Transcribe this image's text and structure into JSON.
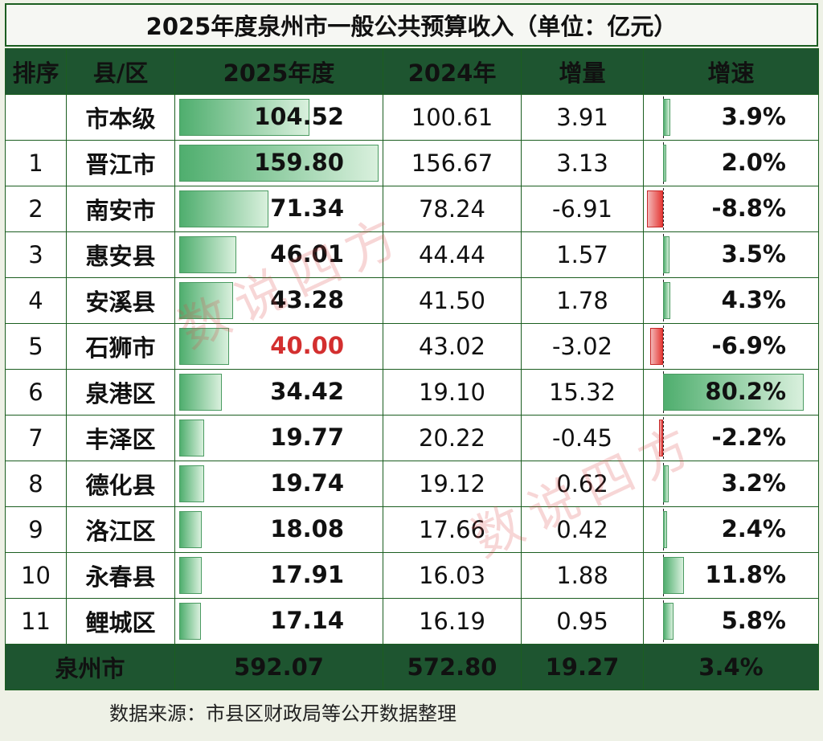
{
  "title": "2025年度泉州市一般公共预算收入（单位：亿元）",
  "headers": {
    "rank": "排序",
    "name": "县/区",
    "y2025": "2025年度",
    "y2024": "2024年",
    "delta": "增量",
    "rate": "增速"
  },
  "rows": [
    {
      "rank": "",
      "name": "市本级",
      "v2025": "104.52",
      "v2024": "100.61",
      "delta": "3.91",
      "rate": "3.9%"
    },
    {
      "rank": "1",
      "name": "晋江市",
      "v2025": "159.80",
      "v2024": "156.67",
      "delta": "3.13",
      "rate": "2.0%"
    },
    {
      "rank": "2",
      "name": "南安市",
      "v2025": "71.34",
      "v2024": "78.24",
      "delta": "-6.91",
      "rate": "-8.8%"
    },
    {
      "rank": "3",
      "name": "惠安县",
      "v2025": "46.01",
      "v2024": "44.44",
      "delta": "1.57",
      "rate": "3.5%"
    },
    {
      "rank": "4",
      "name": "安溪县",
      "v2025": "43.28",
      "v2024": "41.50",
      "delta": "1.78",
      "rate": "4.3%"
    },
    {
      "rank": "5",
      "name": "石狮市",
      "v2025": "40.00",
      "v2024": "43.02",
      "delta": "-3.02",
      "rate": "-6.9%"
    },
    {
      "rank": "6",
      "name": "泉港区",
      "v2025": "34.42",
      "v2024": "19.10",
      "delta": "15.32",
      "rate": "80.2%"
    },
    {
      "rank": "7",
      "name": "丰泽区",
      "v2025": "19.77",
      "v2024": "20.22",
      "delta": "-0.45",
      "rate": "-2.2%"
    },
    {
      "rank": "8",
      "name": "德化县",
      "v2025": "19.74",
      "v2024": "19.12",
      "delta": "0.62",
      "rate": "3.2%"
    },
    {
      "rank": "9",
      "name": "洛江区",
      "v2025": "18.08",
      "v2024": "17.66",
      "delta": "0.42",
      "rate": "2.4%"
    },
    {
      "rank": "10",
      "name": "永春县",
      "v2025": "17.91",
      "v2024": "16.03",
      "delta": "1.88",
      "rate": "11.8%"
    },
    {
      "rank": "11",
      "name": "鲤城区",
      "v2025": "17.14",
      "v2024": "16.19",
      "delta": "0.95",
      "rate": "5.8%"
    }
  ],
  "total": {
    "name": "泉州市",
    "v2025": "592.07",
    "v2024": "572.80",
    "delta": "19.27",
    "rate": "3.4%"
  },
  "source": "数据来源：市县区财政局等公开数据整理",
  "watermark": "数说四方",
  "colors": {
    "header_bg": "#1e5530",
    "bar_green": "#4fae6e",
    "bar_red": "#e53935",
    "highlight_value": "#d32f2f"
  },
  "highlight_value_rows": [
    "石狮市"
  ]
}
